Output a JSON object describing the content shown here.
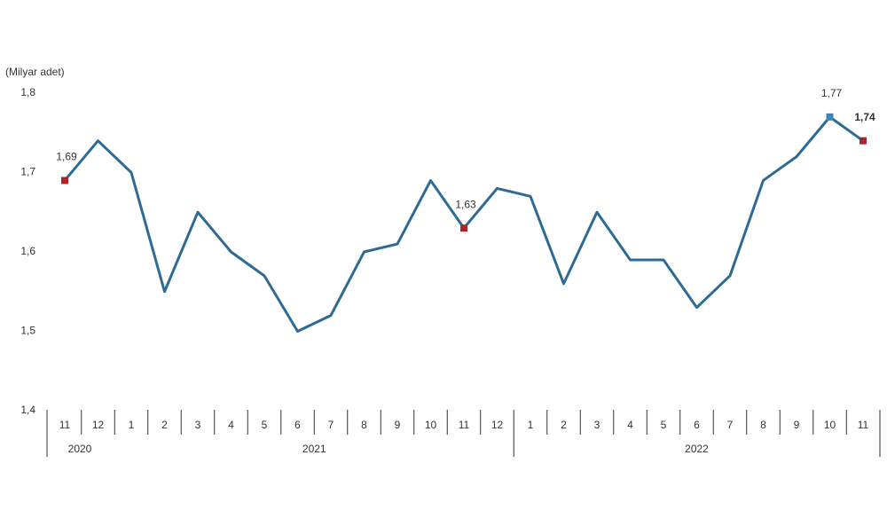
{
  "chart_data": {
    "type": "line",
    "y_axis_label": "(Milyar adet)",
    "categories": [
      "11",
      "12",
      "1",
      "2",
      "3",
      "4",
      "5",
      "6",
      "7",
      "8",
      "9",
      "10",
      "11",
      "12",
      "1",
      "2",
      "3",
      "4",
      "5",
      "6",
      "7",
      "8",
      "9",
      "10",
      "11"
    ],
    "years": [
      "2020",
      "2021",
      "2022"
    ],
    "series": [
      {
        "name": "Adet",
        "color": "#2e6b94",
        "values": [
          1.69,
          1.74,
          1.7,
          1.55,
          1.65,
          1.6,
          1.57,
          1.5,
          1.52,
          1.6,
          1.61,
          1.69,
          1.63,
          1.68,
          1.67,
          1.56,
          1.65,
          1.59,
          1.59,
          1.53,
          1.57,
          1.69,
          1.72,
          1.77,
          1.74
        ],
        "value_labels": [
          "1,69",
          null,
          null,
          null,
          null,
          null,
          null,
          null,
          null,
          null,
          null,
          null,
          "1,63",
          null,
          null,
          null,
          null,
          null,
          null,
          null,
          null,
          null,
          null,
          "1,77",
          "1,74"
        ],
        "marker_colors": [
          "#a8262b",
          null,
          null,
          null,
          null,
          null,
          null,
          null,
          null,
          null,
          null,
          null,
          "#a8262b",
          null,
          null,
          null,
          null,
          null,
          null,
          null,
          null,
          null,
          null,
          "#3d84b8",
          "#a8262b"
        ]
      }
    ],
    "ylim": [
      1.4,
      1.8
    ],
    "yticks": [
      {
        "value": 1.4,
        "label": "1,4"
      },
      {
        "value": 1.5,
        "label": "1,5"
      },
      {
        "value": 1.6,
        "label": "1,6"
      },
      {
        "value": 1.7,
        "label": "1,7"
      },
      {
        "value": 1.8,
        "label": "1,8"
      }
    ],
    "grid": false
  }
}
